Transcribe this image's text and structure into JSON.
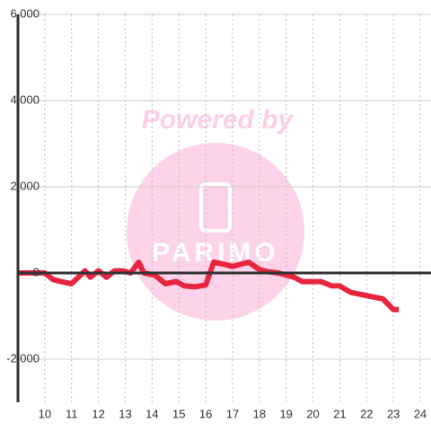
{
  "chart_data": {
    "type": "line",
    "watermark": "Powered by",
    "watermark_logo": "PARIMO",
    "x": [
      9,
      10,
      10.3,
      10.6,
      11,
      11.5,
      11.7,
      12,
      12.3,
      12.6,
      12.9,
      13.2,
      13.5,
      13.7,
      14.1,
      14.5,
      14.9,
      15.2,
      15.6,
      16,
      16.3,
      16.7,
      17,
      17.3,
      17.6,
      18,
      18.3,
      18.7,
      19,
      19.3,
      19.6,
      20,
      20.3,
      20.7,
      21,
      21.4,
      21.8,
      22.2,
      22.6,
      23,
      23.2
    ],
    "series": [
      {
        "color": "#e8253f",
        "values": [
          0,
          0,
          -150,
          -200,
          -250,
          50,
          -100,
          50,
          -100,
          50,
          50,
          0,
          250,
          0,
          -50,
          -250,
          -200,
          -300,
          -320,
          -280,
          250,
          200,
          150,
          200,
          250,
          80,
          30,
          0,
          -50,
          -100,
          -200,
          -200,
          -200,
          -300,
          -300,
          -450,
          -500,
          -550,
          -600,
          -850,
          -850
        ]
      }
    ],
    "xlim": [
      9,
      24.4
    ],
    "xticks": [
      10,
      11,
      12,
      13,
      14,
      15,
      16,
      17,
      18,
      19,
      20,
      21,
      22,
      23,
      24
    ],
    "ylim": [
      -3000,
      6000
    ],
    "yticks": [
      {
        "value": -2000,
        "label": "-2,000"
      },
      0,
      {
        "value": 2000,
        "label": "2,000"
      },
      {
        "value": 4000,
        "label": "4,000"
      },
      {
        "value": 6000,
        "label": "6,000"
      }
    ],
    "grid": true
  }
}
